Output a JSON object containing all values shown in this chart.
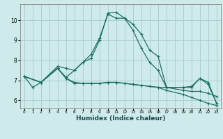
{
  "xlabel": "Humidex (Indice chaleur)",
  "background_color": "#ceeaea",
  "grid_color": "#aacfcf",
  "line_color": "#1a7060",
  "xlim": [
    -0.5,
    23.5
  ],
  "ylim": [
    5.6,
    10.8
  ],
  "yticks": [
    6,
    7,
    8,
    9,
    10
  ],
  "xticks": [
    0,
    1,
    2,
    3,
    4,
    5,
    6,
    7,
    8,
    9,
    10,
    11,
    12,
    13,
    14,
    15,
    16,
    17,
    18,
    19,
    20,
    21,
    22,
    23
  ],
  "lines": [
    {
      "x": [
        0,
        1,
        2,
        4,
        5,
        6,
        7,
        8,
        9,
        10,
        11,
        12,
        13,
        14,
        15,
        16,
        17,
        19,
        20,
        21,
        22,
        23
      ],
      "y": [
        7.2,
        6.65,
        6.9,
        7.7,
        7.6,
        7.5,
        7.9,
        8.3,
        9.1,
        10.3,
        10.1,
        10.1,
        9.8,
        9.3,
        8.5,
        8.2,
        6.65,
        6.65,
        6.7,
        7.1,
        6.9,
        5.85
      ]
    },
    {
      "x": [
        0,
        2,
        4,
        5,
        6,
        7,
        8,
        9,
        10,
        11,
        12,
        13,
        14,
        15,
        16,
        17,
        19,
        20,
        21,
        22,
        23
      ],
      "y": [
        7.2,
        6.9,
        7.6,
        7.15,
        7.5,
        7.9,
        8.1,
        9.0,
        10.35,
        10.4,
        10.1,
        9.5,
        8.6,
        7.9,
        7.5,
        6.65,
        6.65,
        6.65,
        7.1,
        6.8,
        5.85
      ]
    },
    {
      "x": [
        0,
        2,
        4,
        5,
        6,
        7,
        8,
        9,
        10,
        11,
        12,
        13,
        14,
        15,
        16,
        17,
        19,
        20,
        21,
        22,
        23
      ],
      "y": [
        7.2,
        6.9,
        7.6,
        7.1,
        6.85,
        6.85,
        6.85,
        6.85,
        6.9,
        6.9,
        6.85,
        6.8,
        6.75,
        6.7,
        6.65,
        6.5,
        6.3,
        6.15,
        6.0,
        5.85,
        5.75
      ]
    },
    {
      "x": [
        0,
        2,
        4,
        5,
        6,
        7,
        8,
        9,
        10,
        11,
        12,
        13,
        14,
        15,
        16,
        17,
        19,
        20,
        21,
        22,
        23
      ],
      "y": [
        7.2,
        6.9,
        7.6,
        7.1,
        6.9,
        6.85,
        6.85,
        6.85,
        6.9,
        6.9,
        6.85,
        6.8,
        6.75,
        6.7,
        6.65,
        6.65,
        6.5,
        6.45,
        6.45,
        6.35,
        6.2
      ]
    }
  ]
}
